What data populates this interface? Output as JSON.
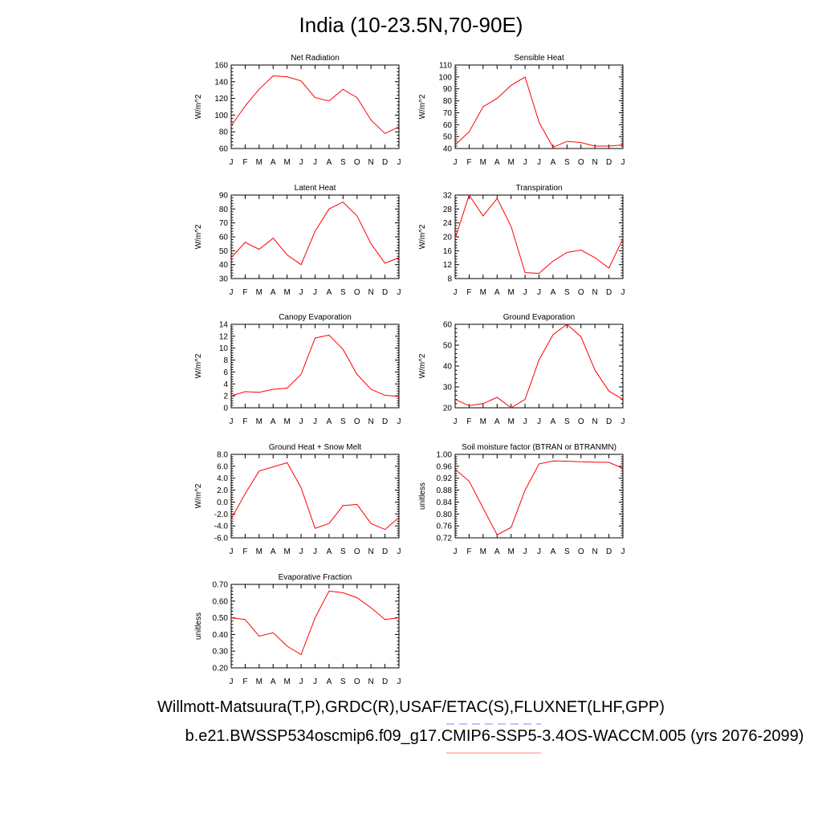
{
  "title": "India (10-23.5N,70-90E)",
  "footer": {
    "obs_line": "Willmott-Matsuura(T,P),GRDC(R),USAF/ETAC(S),FLUXNET(LHF,GPP)",
    "model_line": "b.e21.BWSSP534oscmip6.f09_g17.CMIP6-SSP5-3.4OS-WACCM.005 (yrs 2076-2099)"
  },
  "colors": {
    "model_line": "#ff0000",
    "obs_dash": "#8080ff",
    "model_underline": "#ff8080"
  },
  "chart_data": [
    {
      "type": "line",
      "title": "Net Radiation",
      "ylabel": "W/m^2",
      "categories": [
        "J",
        "F",
        "M",
        "A",
        "M",
        "J",
        "J",
        "A",
        "S",
        "O",
        "N",
        "D",
        "J"
      ],
      "ylim": [
        60,
        160
      ],
      "yticks": [
        60,
        80,
        100,
        120,
        140,
        160
      ],
      "ytick_labels": [
        "60",
        "80",
        "100",
        "120",
        "140",
        "160"
      ],
      "values": [
        87,
        111,
        131,
        147,
        146,
        141,
        121,
        117,
        131,
        121,
        94,
        78,
        86
      ]
    },
    {
      "type": "line",
      "title": "Sensible Heat",
      "ylabel": "W/m^2",
      "categories": [
        "J",
        "F",
        "M",
        "A",
        "M",
        "J",
        "J",
        "A",
        "S",
        "O",
        "N",
        "D",
        "J"
      ],
      "ylim": [
        40,
        110
      ],
      "yticks": [
        40,
        50,
        60,
        70,
        80,
        90,
        100,
        110
      ],
      "ytick_labels": [
        "40",
        "50",
        "60",
        "70",
        "80",
        "90",
        "100",
        "110"
      ],
      "values": [
        43,
        54,
        75,
        82,
        93,
        100,
        62,
        41,
        46,
        45,
        42,
        42,
        43
      ]
    },
    {
      "type": "line",
      "title": "Latent Heat",
      "ylabel": "W/m^2",
      "categories": [
        "J",
        "F",
        "M",
        "A",
        "M",
        "J",
        "J",
        "A",
        "S",
        "O",
        "N",
        "D",
        "J"
      ],
      "ylim": [
        30,
        90
      ],
      "yticks": [
        30,
        40,
        50,
        60,
        70,
        80,
        90
      ],
      "ytick_labels": [
        "30",
        "40",
        "50",
        "60",
        "70",
        "80",
        "90"
      ],
      "values": [
        45,
        56,
        51,
        59,
        47,
        40,
        64,
        80,
        85,
        75,
        55,
        41,
        45
      ]
    },
    {
      "type": "line",
      "title": "Transpiration",
      "ylabel": "W/m^2",
      "categories": [
        "J",
        "F",
        "M",
        "A",
        "M",
        "J",
        "J",
        "A",
        "S",
        "O",
        "N",
        "D",
        "J"
      ],
      "ylim": [
        8,
        32
      ],
      "yticks": [
        8,
        12,
        16,
        20,
        24,
        28,
        32
      ],
      "ytick_labels": [
        "8",
        "12",
        "16",
        "20",
        "24",
        "28",
        "32"
      ],
      "values": [
        19.5,
        32,
        26,
        31,
        23,
        9.7,
        9.5,
        13,
        15.5,
        16.2,
        14,
        11,
        19.5
      ]
    },
    {
      "type": "line",
      "title": "Canopy Evaporation",
      "ylabel": "W/m^2",
      "categories": [
        "J",
        "F",
        "M",
        "A",
        "M",
        "J",
        "J",
        "A",
        "S",
        "O",
        "N",
        "D",
        "J"
      ],
      "ylim": [
        0,
        14
      ],
      "yticks": [
        0,
        2,
        4,
        6,
        8,
        10,
        12,
        14
      ],
      "ytick_labels": [
        "0",
        "2",
        "4",
        "6",
        "8",
        "10",
        "12",
        "14"
      ],
      "values": [
        2,
        2.7,
        2.6,
        3.1,
        3.3,
        5.6,
        11.7,
        12.2,
        9.8,
        5.6,
        3.1,
        2.1,
        1.9
      ]
    },
    {
      "type": "line",
      "title": "Ground Evaporation",
      "ylabel": "W/m^2",
      "categories": [
        "J",
        "F",
        "M",
        "A",
        "M",
        "J",
        "J",
        "A",
        "S",
        "O",
        "N",
        "D",
        "J"
      ],
      "ylim": [
        20,
        60
      ],
      "yticks": [
        20,
        30,
        40,
        50,
        60
      ],
      "ytick_labels": [
        "20",
        "30",
        "40",
        "50",
        "60"
      ],
      "values": [
        24,
        21,
        22,
        25,
        20,
        24,
        43,
        55,
        60,
        54,
        38,
        28,
        24
      ]
    },
    {
      "type": "line",
      "title": "Ground Heat + Snow Melt",
      "ylabel": "W/m^2",
      "categories": [
        "J",
        "F",
        "M",
        "A",
        "M",
        "J",
        "J",
        "A",
        "S",
        "O",
        "N",
        "D",
        "J"
      ],
      "ylim": [
        -6,
        8
      ],
      "yticks": [
        -6,
        -4,
        -2,
        0,
        2,
        4,
        6,
        8
      ],
      "ytick_labels": [
        "-6.0",
        "-4.0",
        "-2.0",
        "0.0",
        "2.0",
        "4.0",
        "6.0",
        "8.0"
      ],
      "values": [
        -2.8,
        1.4,
        5.2,
        5.9,
        6.6,
        2.4,
        -4.4,
        -3.6,
        -0.6,
        -0.4,
        -3.6,
        -4.6,
        -2.6
      ]
    },
    {
      "type": "line",
      "title": "Soil moisture factor (BTRAN or BTRANMN)",
      "ylabel": "unitless",
      "categories": [
        "J",
        "F",
        "M",
        "A",
        "M",
        "J",
        "J",
        "A",
        "S",
        "O",
        "N",
        "D",
        "J"
      ],
      "ylim": [
        0.72,
        1.0
      ],
      "yticks": [
        0.72,
        0.76,
        0.8,
        0.84,
        0.88,
        0.92,
        0.96,
        1.0
      ],
      "ytick_labels": [
        "0.72",
        "0.76",
        "0.80",
        "0.84",
        "0.88",
        "0.92",
        "0.96",
        "1.00"
      ],
      "values": [
        0.95,
        0.91,
        0.82,
        0.73,
        0.755,
        0.88,
        0.968,
        0.978,
        0.977,
        0.975,
        0.974,
        0.973,
        0.953
      ]
    },
    {
      "type": "line",
      "title": "Evaporative Fraction",
      "ylabel": "unitless",
      "categories": [
        "J",
        "F",
        "M",
        "A",
        "M",
        "J",
        "J",
        "A",
        "S",
        "O",
        "N",
        "D",
        "J"
      ],
      "ylim": [
        0.2,
        0.7
      ],
      "yticks": [
        0.2,
        0.3,
        0.4,
        0.5,
        0.6,
        0.7
      ],
      "ytick_labels": [
        "0.20",
        "0.30",
        "0.40",
        "0.50",
        "0.60",
        "0.70"
      ],
      "values": [
        0.5,
        0.49,
        0.39,
        0.41,
        0.33,
        0.28,
        0.5,
        0.66,
        0.65,
        0.62,
        0.56,
        0.49,
        0.5
      ]
    }
  ]
}
